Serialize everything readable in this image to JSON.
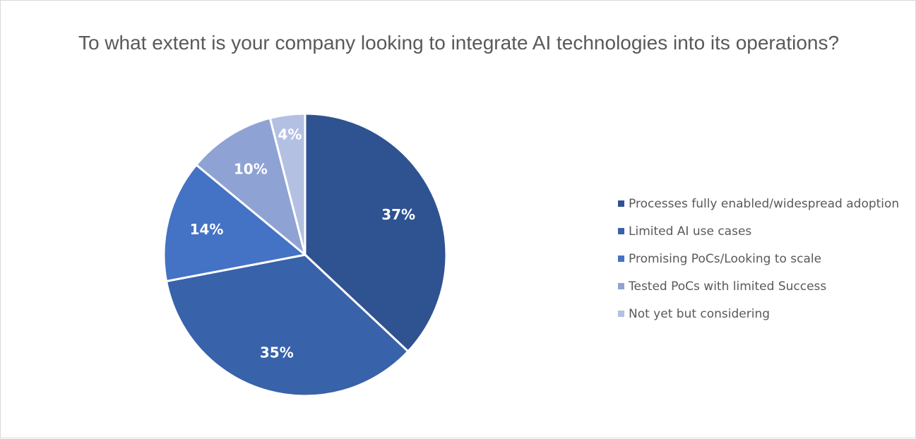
{
  "chart_data": {
    "type": "pie",
    "title": "To what extent is your company looking to integrate AI technologies into its operations?",
    "slices": [
      {
        "label": "Processes fully enabled/widespread adoption",
        "value": 37,
        "value_label": "37%",
        "color": "#2f5291"
      },
      {
        "label": "Limited AI use cases",
        "value": 35,
        "value_label": "35%",
        "color": "#3862aa"
      },
      {
        "label": "Promising PoCs/Looking to scale",
        "value": 14,
        "value_label": "14%",
        "color": "#4472c4"
      },
      {
        "label": "Tested PoCs with limited Success",
        "value": 10,
        "value_label": "10%",
        "color": "#8fa2d4"
      },
      {
        "label": "Not yet but considering",
        "value": 4,
        "value_label": "4%",
        "color": "#b4c0e2"
      }
    ],
    "legend_position": "right"
  }
}
